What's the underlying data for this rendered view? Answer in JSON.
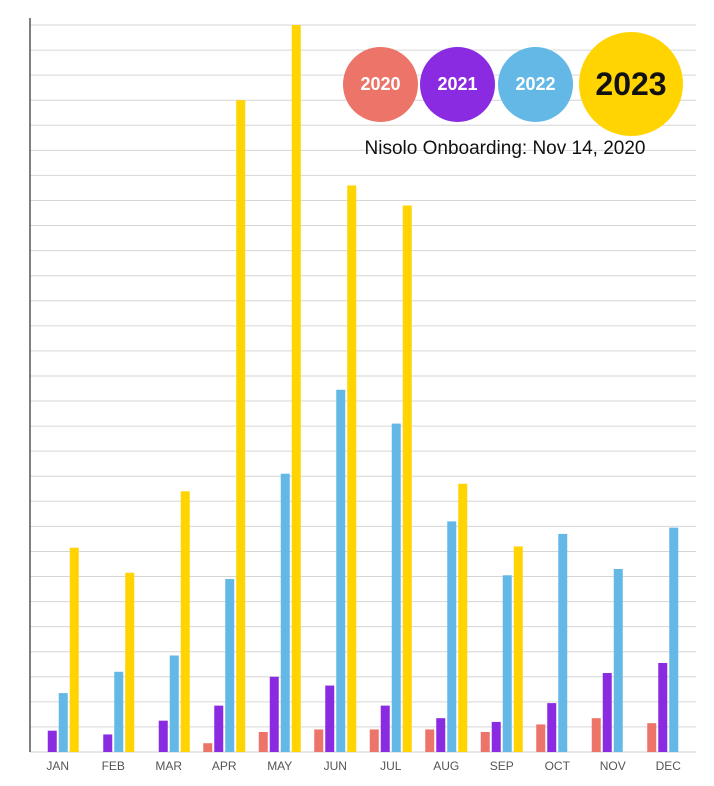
{
  "chart_data": {
    "type": "bar",
    "title": "",
    "xlabel": "",
    "ylabel": "",
    "categories": [
      "JAN",
      "FEB",
      "MAR",
      "APR",
      "MAY",
      "JUN",
      "JUL",
      "AUG",
      "SEP",
      "OCT",
      "NOV",
      "DEC"
    ],
    "ylim": [
      0,
      29
    ],
    "grid": true,
    "legend_position": "top-right",
    "annotation": "Nisolo Onboarding: Nov 14, 2020",
    "series": [
      {
        "name": "2020",
        "color": "#EC7468",
        "values": [
          0,
          0,
          0,
          0.35,
          0.8,
          0.9,
          0.9,
          0.9,
          0.8,
          1.1,
          1.35,
          1.15
        ]
      },
      {
        "name": "2021",
        "color": "#8A2BE2",
        "values": [
          0.85,
          0.7,
          1.25,
          1.85,
          3.0,
          2.65,
          1.85,
          1.35,
          1.2,
          1.95,
          3.15,
          3.55
        ]
      },
      {
        "name": "2022",
        "color": "#64B8E6",
        "values": [
          2.35,
          3.2,
          3.85,
          6.9,
          11.1,
          14.45,
          13.1,
          9.2,
          7.05,
          8.7,
          7.3,
          8.95
        ]
      },
      {
        "name": "2023",
        "color": "#FFD400",
        "values": [
          8.15,
          7.15,
          10.4,
          26.0,
          29.0,
          22.6,
          21.8,
          10.7,
          8.2,
          0,
          0,
          0
        ]
      }
    ]
  }
}
